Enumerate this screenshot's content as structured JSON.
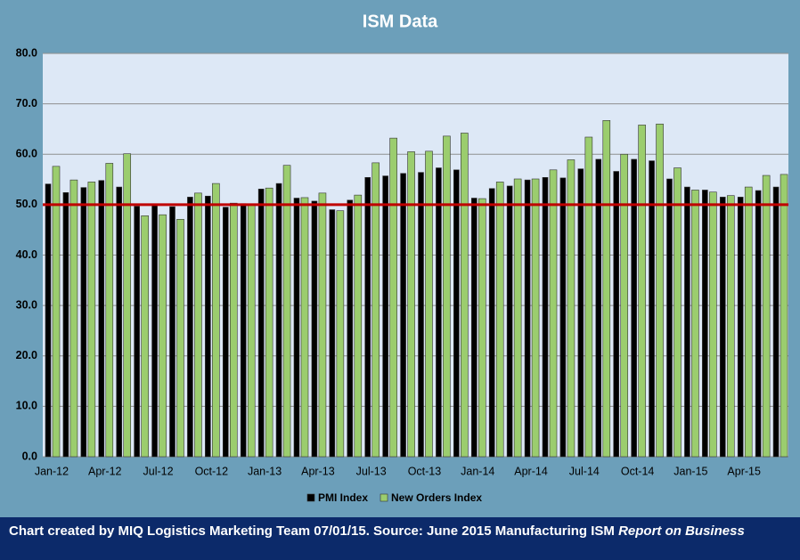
{
  "chart_data": {
    "type": "bar",
    "title": "ISM Data",
    "categories": [
      "Jan-12",
      null,
      null,
      "Apr-12",
      null,
      null,
      "Jul-12",
      null,
      null,
      "Oct-12",
      null,
      null,
      "Jan-13",
      null,
      null,
      "Apr-13",
      null,
      null,
      "Jul-13",
      null,
      null,
      "Oct-13",
      null,
      null,
      "Jan-14",
      null,
      null,
      "Apr-14",
      null,
      null,
      "Jul-14",
      null,
      null,
      "Oct-14",
      null,
      null,
      "Jan-15",
      null,
      null,
      "Apr-15",
      null,
      null
    ],
    "series": [
      {
        "name": "PMI Index",
        "color": "#000000",
        "values": [
          54.1,
          52.4,
          53.4,
          54.8,
          53.5,
          49.7,
          49.8,
          49.6,
          51.5,
          51.7,
          49.5,
          50.2,
          53.1,
          54.2,
          51.3,
          50.7,
          49.0,
          50.9,
          55.4,
          55.7,
          56.2,
          56.4,
          57.3,
          56.9,
          51.3,
          53.2,
          53.7,
          54.9,
          55.4,
          55.3,
          57.1,
          59.0,
          56.6,
          59.0,
          58.7,
          55.1,
          53.5,
          52.9,
          51.5,
          51.5,
          52.8,
          53.5
        ]
      },
      {
        "name": "New Orders Index",
        "color": "#9bcd6e",
        "values": [
          57.6,
          54.9,
          54.5,
          58.2,
          60.1,
          47.8,
          48.0,
          47.1,
          52.3,
          54.2,
          50.3,
          50.0,
          53.3,
          57.8,
          51.4,
          52.3,
          48.8,
          51.9,
          58.3,
          63.2,
          60.5,
          60.6,
          63.6,
          64.2,
          51.2,
          54.5,
          55.1,
          55.1,
          56.9,
          58.9,
          63.4,
          66.7,
          60.0,
          65.8,
          66.0,
          57.3,
          52.9,
          52.5,
          51.8,
          53.5,
          55.8,
          56.0
        ]
      }
    ],
    "ylim": [
      0,
      80
    ],
    "yticks": [
      {
        "value": 0,
        "label": "0.0"
      },
      {
        "value": 10,
        "label": "10.0"
      },
      {
        "value": 20,
        "label": "20.0"
      },
      {
        "value": 30,
        "label": "30.0"
      },
      {
        "value": 40,
        "label": "40.0"
      },
      {
        "value": 50,
        "label": "50.0"
      },
      {
        "value": 60,
        "label": "60.0"
      },
      {
        "value": 70,
        "label": "70.0"
      },
      {
        "value": 80,
        "label": "80.0"
      }
    ],
    "grid": true,
    "reference_line": {
      "value": 50,
      "color": "#c00000"
    },
    "legend": "bottom"
  },
  "footer": {
    "text": "Chart created by MIQ Logistics Marketing Team 07/01/15. Source: June 2015 Manufacturing ISM ",
    "italic": "Report on Business"
  }
}
